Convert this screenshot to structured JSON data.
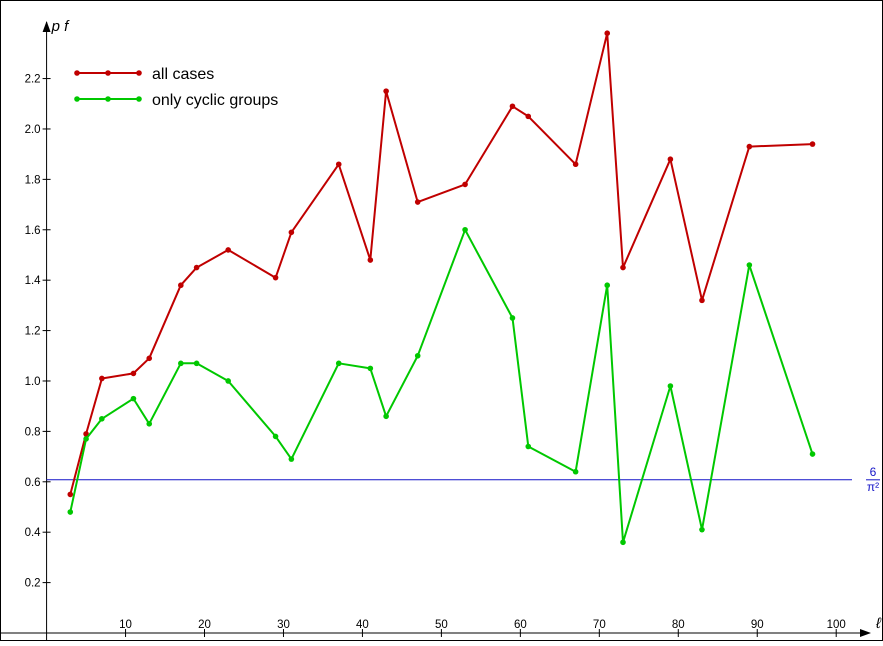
{
  "chart_data": {
    "type": "line",
    "xlabel": "ℓ",
    "ylabel": "p f",
    "xlim": [
      -4,
      102
    ],
    "ylim": [
      0,
      2.48
    ],
    "x_ticks": [
      10,
      20,
      30,
      40,
      50,
      60,
      70,
      80,
      90,
      100
    ],
    "y_ticks": [
      0.2,
      0.4,
      0.6,
      0.8,
      1.0,
      1.2,
      1.4,
      1.6,
      1.8,
      2.0,
      2.2
    ],
    "x_tick_labels": [
      "10",
      "20",
      "30",
      "40",
      "50",
      "60",
      "70",
      "80",
      "90",
      "100"
    ],
    "y_tick_labels": [
      "0.2",
      "0.4",
      "0.6",
      "0.8",
      "1.0",
      "1.2",
      "1.4",
      "1.6",
      "1.8",
      "2.0",
      "2.2"
    ],
    "grid": false,
    "legend_position": "top-left",
    "series": [
      {
        "name": "all cases",
        "color": "#c00000",
        "x": [
          3,
          5,
          7,
          11,
          13,
          17,
          19,
          23,
          29,
          31,
          37,
          41,
          43,
          47,
          53,
          59,
          61,
          67,
          71,
          73,
          79,
          83,
          89,
          97
        ],
        "y": [
          0.55,
          0.79,
          1.01,
          1.03,
          1.09,
          1.38,
          1.45,
          1.52,
          1.41,
          1.59,
          1.86,
          1.48,
          2.15,
          1.71,
          1.78,
          2.09,
          2.05,
          1.86,
          2.38,
          1.45,
          1.88,
          1.32,
          1.93,
          1.94
        ]
      },
      {
        "name": "only cyclic groups",
        "color": "#00c800",
        "x": [
          3,
          5,
          7,
          11,
          13,
          17,
          19,
          23,
          29,
          31,
          37,
          41,
          43,
          47,
          53,
          59,
          61,
          67,
          71,
          73,
          79,
          83,
          89,
          97
        ],
        "y": [
          0.48,
          0.77,
          0.85,
          0.93,
          0.83,
          1.07,
          1.07,
          1.0,
          0.78,
          0.69,
          1.07,
          1.05,
          0.86,
          1.1,
          1.6,
          1.25,
          0.74,
          0.64,
          1.38,
          0.36,
          0.98,
          0.41,
          1.46,
          0.71
        ]
      }
    ],
    "reference_line": {
      "y": 0.6079,
      "color": "#1414c8",
      "label_numerator": "6",
      "label_denominator": "π²"
    }
  }
}
